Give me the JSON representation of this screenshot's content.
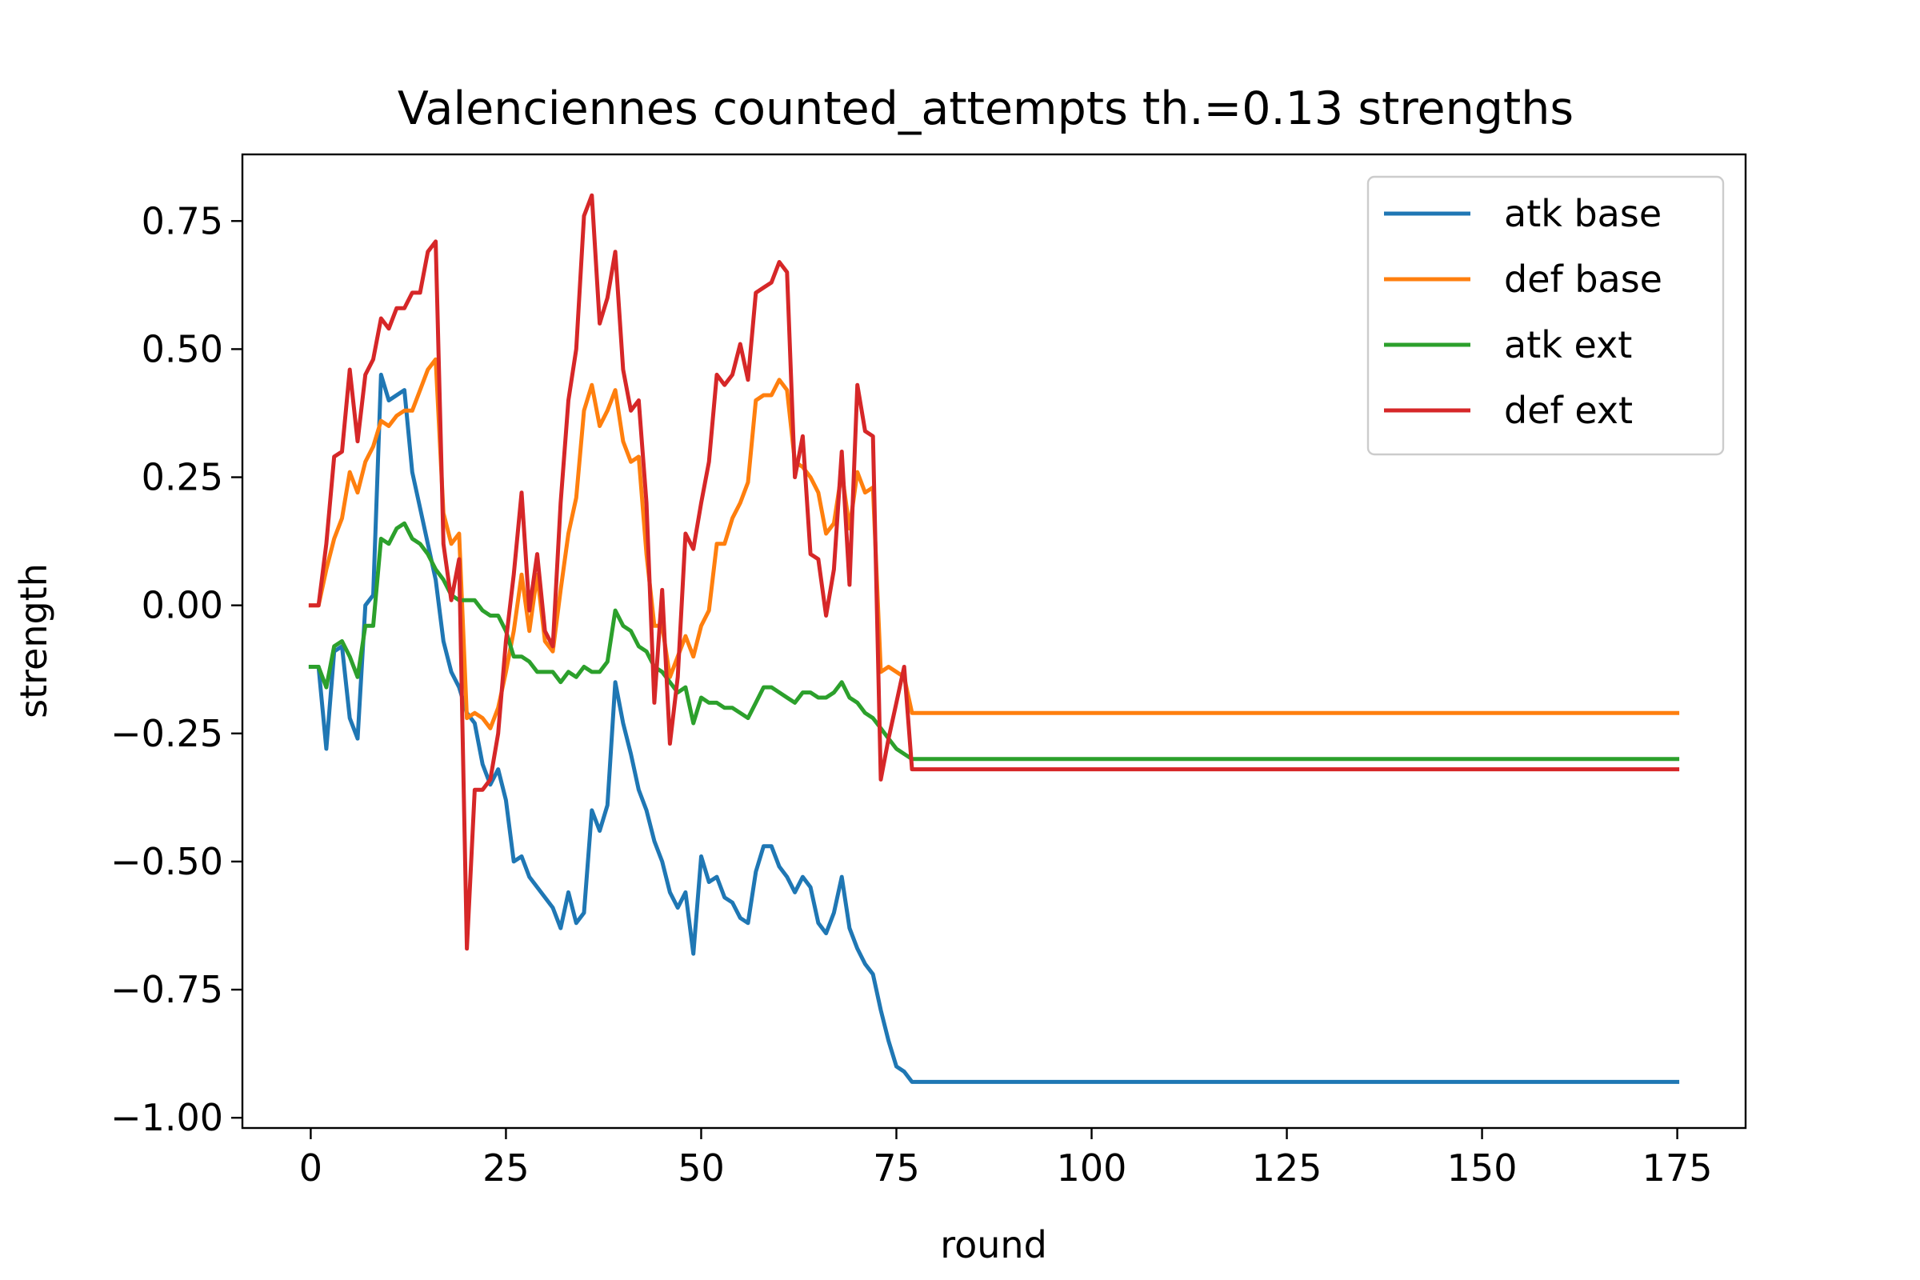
{
  "chart_data": {
    "type": "line",
    "title": "Valenciennes counted_attempts th.=0.13 strengths",
    "xlabel": "round",
    "ylabel": "strength",
    "xlim": [
      -8.75,
      183.75
    ],
    "ylim": [
      -1.02,
      0.88
    ],
    "xticks": [
      0,
      25,
      50,
      75,
      100,
      125,
      150,
      175
    ],
    "xtick_labels": [
      "0",
      "25",
      "50",
      "75",
      "100",
      "125",
      "150",
      "175"
    ],
    "yticks": [
      -1.0,
      -0.75,
      -0.5,
      -0.25,
      0.0,
      0.25,
      0.5,
      0.75
    ],
    "ytick_labels": [
      "−1.00",
      "−0.75",
      "−0.50",
      "−0.25",
      "0.00",
      "0.25",
      "0.50",
      "0.75"
    ],
    "grid": false,
    "legend_position": "upper-right",
    "x_end": 175,
    "series": [
      {
        "name": "atk base",
        "color": "#1f77b4",
        "values": [
          -0.12,
          -0.12,
          -0.28,
          -0.09,
          -0.08,
          -0.22,
          -0.26,
          0.0,
          0.02,
          0.45,
          0.4,
          0.41,
          0.42,
          0.26,
          0.19,
          0.12,
          0.05,
          -0.07,
          -0.13,
          -0.16,
          -0.21,
          -0.23,
          -0.31,
          -0.35,
          -0.32,
          -0.38,
          -0.5,
          -0.49,
          -0.53,
          -0.55,
          -0.57,
          -0.59,
          -0.63,
          -0.56,
          -0.62,
          -0.6,
          -0.4,
          -0.44,
          -0.39,
          -0.15,
          -0.23,
          -0.29,
          -0.36,
          -0.4,
          -0.46,
          -0.5,
          -0.56,
          -0.59,
          -0.56,
          -0.68,
          -0.49,
          -0.54,
          -0.53,
          -0.57,
          -0.58,
          -0.61,
          -0.62,
          -0.52,
          -0.47,
          -0.47,
          -0.51,
          -0.53,
          -0.56,
          -0.53,
          -0.55,
          -0.62,
          -0.64,
          -0.6,
          -0.53,
          -0.63,
          -0.67,
          -0.7,
          -0.72,
          -0.79,
          -0.85,
          -0.9,
          -0.91,
          -0.93
        ]
      },
      {
        "name": "def base",
        "color": "#ff7f0e",
        "values": [
          0.0,
          0.0,
          0.07,
          0.13,
          0.17,
          0.26,
          0.22,
          0.28,
          0.31,
          0.36,
          0.35,
          0.37,
          0.38,
          0.38,
          0.42,
          0.46,
          0.48,
          0.18,
          0.12,
          0.14,
          -0.22,
          -0.21,
          -0.22,
          -0.24,
          -0.2,
          -0.13,
          -0.05,
          0.06,
          -0.05,
          0.06,
          -0.07,
          -0.09,
          0.03,
          0.14,
          0.21,
          0.38,
          0.43,
          0.35,
          0.38,
          0.42,
          0.32,
          0.28,
          0.29,
          0.1,
          -0.04,
          -0.04,
          -0.14,
          -0.1,
          -0.06,
          -0.1,
          -0.04,
          -0.01,
          0.12,
          0.12,
          0.17,
          0.2,
          0.24,
          0.4,
          0.41,
          0.41,
          0.44,
          0.42,
          0.28,
          0.27,
          0.25,
          0.22,
          0.14,
          0.16,
          0.26,
          0.15,
          0.26,
          0.22,
          0.23,
          -0.13,
          -0.12,
          -0.13,
          -0.14,
          -0.21
        ]
      },
      {
        "name": "atk ext",
        "color": "#2ca02c",
        "values": [
          -0.12,
          -0.12,
          -0.16,
          -0.08,
          -0.07,
          -0.1,
          -0.14,
          -0.04,
          -0.04,
          0.13,
          0.12,
          0.15,
          0.16,
          0.13,
          0.12,
          0.1,
          0.07,
          0.05,
          0.02,
          0.01,
          0.01,
          0.01,
          -0.01,
          -0.02,
          -0.02,
          -0.05,
          -0.1,
          -0.1,
          -0.11,
          -0.13,
          -0.13,
          -0.13,
          -0.15,
          -0.13,
          -0.14,
          -0.12,
          -0.13,
          -0.13,
          -0.11,
          -0.01,
          -0.04,
          -0.05,
          -0.08,
          -0.09,
          -0.12,
          -0.13,
          -0.15,
          -0.17,
          -0.16,
          -0.23,
          -0.18,
          -0.19,
          -0.19,
          -0.2,
          -0.2,
          -0.21,
          -0.22,
          -0.19,
          -0.16,
          -0.16,
          -0.17,
          -0.18,
          -0.19,
          -0.17,
          -0.17,
          -0.18,
          -0.18,
          -0.17,
          -0.15,
          -0.18,
          -0.19,
          -0.21,
          -0.22,
          -0.24,
          -0.26,
          -0.28,
          -0.29,
          -0.3
        ]
      },
      {
        "name": "def ext",
        "color": "#d62728",
        "values": [
          0.0,
          0.0,
          0.12,
          0.29,
          0.3,
          0.46,
          0.32,
          0.45,
          0.48,
          0.56,
          0.54,
          0.58,
          0.58,
          0.61,
          0.61,
          0.69,
          0.71,
          0.12,
          0.01,
          0.09,
          -0.67,
          -0.36,
          -0.36,
          -0.34,
          -0.25,
          -0.07,
          0.06,
          0.22,
          -0.01,
          0.1,
          -0.05,
          -0.08,
          0.2,
          0.4,
          0.5,
          0.76,
          0.8,
          0.55,
          0.6,
          0.69,
          0.46,
          0.38,
          0.4,
          0.2,
          -0.19,
          0.03,
          -0.27,
          -0.14,
          0.14,
          0.11,
          0.2,
          0.28,
          0.45,
          0.43,
          0.45,
          0.51,
          0.44,
          0.61,
          0.62,
          0.63,
          0.67,
          0.65,
          0.25,
          0.33,
          0.1,
          0.09,
          -0.02,
          0.07,
          0.3,
          0.04,
          0.43,
          0.34,
          0.33,
          -0.34,
          -0.26,
          -0.19,
          -0.12,
          -0.32
        ]
      }
    ],
    "final_values": {
      "atk base": -0.93,
      "def base": -0.21,
      "atk ext": -0.3,
      "def ext": -0.32
    }
  }
}
